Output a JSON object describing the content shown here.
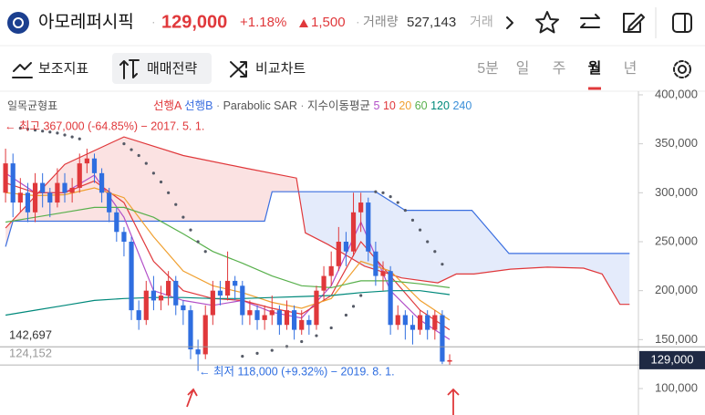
{
  "header": {
    "name": "아모레퍼시픽",
    "price": "129,000",
    "change_pct": "+1.18%",
    "change_abs": "1,500",
    "volume_label": "거래량",
    "volume": "527,143",
    "volume_cut": "거래"
  },
  "toolbar": {
    "indicators": "보조지표",
    "strategy": "매매전략",
    "compare": "비교차트",
    "periods": [
      "5분",
      "일",
      "주",
      "월",
      "년"
    ],
    "active_period": 3
  },
  "chart_data": {
    "type": "candlestick",
    "up_color": "#e0383b",
    "down_color": "#2f6ee0",
    "open": [
      300000,
      330000,
      290000,
      300000,
      280000,
      310000,
      300000,
      290000,
      310000,
      300000,
      305000,
      330000,
      335000,
      320000,
      300000,
      280000,
      260000,
      250000,
      180000,
      170000,
      200000,
      190000,
      195000,
      210000,
      185000,
      180000,
      140000,
      135000,
      175000,
      200000,
      195000,
      210000,
      205000,
      175000,
      180000,
      170000,
      175000,
      180000,
      165000,
      180000,
      160000,
      170000,
      165000,
      200000,
      215000,
      225000,
      250000,
      240000,
      280000,
      290000,
      240000,
      215000,
      220000,
      165000,
      175000,
      165000,
      160000,
      175000,
      160000,
      175000,
      127500
    ],
    "high": [
      345000,
      340000,
      315000,
      310000,
      320000,
      320000,
      305000,
      325000,
      320000,
      315000,
      340000,
      345000,
      340000,
      325000,
      305000,
      285000,
      265000,
      255000,
      190000,
      210000,
      215000,
      205000,
      220000,
      215000,
      190000,
      185000,
      150000,
      185000,
      210000,
      210000,
      240000,
      215000,
      210000,
      190000,
      185000,
      185000,
      195000,
      185000,
      190000,
      185000,
      180000,
      175000,
      205000,
      225000,
      240000,
      265000,
      260000,
      300000,
      300000,
      295000,
      250000,
      230000,
      225000,
      185000,
      180000,
      175000,
      180000,
      180000,
      180000,
      180000,
      135000
    ],
    "low": [
      290000,
      275000,
      280000,
      270000,
      270000,
      285000,
      275000,
      285000,
      290000,
      290000,
      300000,
      320000,
      310000,
      290000,
      270000,
      250000,
      235000,
      170000,
      160000,
      165000,
      180000,
      180000,
      185000,
      175000,
      165000,
      130000,
      118000,
      130000,
      165000,
      185000,
      190000,
      190000,
      165000,
      165000,
      160000,
      160000,
      165000,
      155000,
      160000,
      150000,
      155000,
      155000,
      160000,
      190000,
      205000,
      220000,
      225000,
      235000,
      260000,
      230000,
      205000,
      200000,
      155000,
      160000,
      150000,
      145000,
      155000,
      150000,
      150000,
      125000,
      124152
    ],
    "close": [
      330000,
      290000,
      300000,
      280000,
      310000,
      300000,
      290000,
      310000,
      300000,
      305000,
      330000,
      335000,
      320000,
      300000,
      280000,
      260000,
      250000,
      180000,
      170000,
      200000,
      190000,
      195000,
      210000,
      185000,
      180000,
      140000,
      135000,
      175000,
      200000,
      195000,
      210000,
      205000,
      175000,
      180000,
      170000,
      175000,
      180000,
      165000,
      180000,
      160000,
      170000,
      165000,
      200000,
      215000,
      225000,
      250000,
      240000,
      280000,
      290000,
      240000,
      215000,
      220000,
      165000,
      175000,
      165000,
      160000,
      175000,
      160000,
      175000,
      127500,
      129000
    ],
    "ylim": [
      73000,
      403700
    ],
    "yticks": [
      {
        "value": 100000,
        "label": "100,000"
      },
      {
        "value": 150000,
        "label": "150,000"
      },
      {
        "value": 200000,
        "label": "200,000"
      },
      {
        "value": 250000,
        "label": "250,000"
      },
      {
        "value": 300000,
        "label": "300,000"
      },
      {
        "value": 350000,
        "label": "350,000"
      },
      {
        "value": 400000,
        "label": "400,000"
      }
    ],
    "ichimoku": {
      "label": "일목균형표",
      "fill_a": "#fbe2e2",
      "fill_b": "#e4ebfb",
      "span_a": {
        "name": "선행A",
        "color": "#e0383b",
        "x": [
          0,
          8,
          16,
          24,
          32.5,
          39.3,
          40.5,
          43.6,
          48.5,
          53.5,
          58.4,
          60.9,
          63.3,
          68.2,
          73.2,
          78.1,
          80.6,
          83,
          84.3
        ],
        "values": [
          264000,
          329000,
          357000,
          338000,
          325000,
          315000,
          259000,
          247000,
          225000,
          213000,
          208000,
          217000,
          217000,
          222000,
          224000,
          223000,
          217000,
          186000,
          186000
        ]
      },
      "span_b": {
        "name": "선행B",
        "color": "#3b6fe0",
        "x": [
          0,
          1,
          35,
          36,
          50,
          54,
          63,
          68,
          84.3
        ],
        "values": [
          245000,
          271000,
          271000,
          301000,
          301000,
          282000,
          282000,
          238000,
          238000
        ]
      }
    },
    "sar": {
      "name": "Parabolic SAR",
      "color": "#555a66",
      "x": [
        2,
        3,
        4,
        5,
        6,
        7,
        8,
        9,
        10,
        16,
        17,
        18,
        19,
        20,
        21,
        22,
        23,
        24,
        25,
        26,
        27,
        32,
        34,
        36,
        38,
        40,
        42,
        44,
        46,
        47,
        48,
        50,
        51,
        52,
        53,
        54,
        55,
        56,
        57,
        58,
        59
      ],
      "values": [
        366000,
        365000,
        364000,
        363000,
        362000,
        361000,
        359000,
        357000,
        355000,
        350000,
        344000,
        338000,
        330000,
        320000,
        311000,
        300000,
        288000,
        275000,
        262000,
        250000,
        240000,
        133000,
        136000,
        139000,
        143000,
        148000,
        154000,
        162000,
        175000,
        184000,
        195000,
        301000,
        300000,
        296000,
        290000,
        282000,
        272000,
        262000,
        250000,
        240000,
        227000
      ]
    },
    "ema": {
      "label": "지수이동평균",
      "series": [
        {
          "name": "5",
          "color": "#b24fc8",
          "x": [
            0,
            4,
            8,
            12,
            16,
            20,
            24,
            28,
            32,
            36,
            40,
            44,
            48,
            52,
            56,
            60
          ],
          "values": [
            320000,
            300000,
            300000,
            318000,
            275000,
            200000,
            190000,
            185000,
            190000,
            178000,
            172000,
            205000,
            270000,
            200000,
            170000,
            150000
          ]
        },
        {
          "name": "10",
          "color": "#e0383b",
          "x": [
            0,
            4,
            8,
            12,
            16,
            20,
            24,
            28,
            32,
            36,
            40,
            44,
            48,
            52,
            56,
            60
          ],
          "values": [
            310000,
            300000,
            300000,
            312000,
            290000,
            230000,
            200000,
            192000,
            190000,
            182000,
            176000,
            195000,
            250000,
            215000,
            180000,
            160000
          ]
        },
        {
          "name": "20",
          "color": "#f0a030",
          "x": [
            0,
            4,
            8,
            12,
            16,
            20,
            24,
            28,
            32,
            36,
            40,
            44,
            48,
            52,
            56,
            60
          ],
          "values": [
            300000,
            297000,
            298000,
            305000,
            295000,
            255000,
            220000,
            205000,
            198000,
            188000,
            182000,
            192000,
            230000,
            220000,
            190000,
            170000
          ]
        },
        {
          "name": "60",
          "color": "#58b04c",
          "x": [
            0,
            4,
            8,
            12,
            16,
            20,
            24,
            28,
            32,
            36,
            40,
            44,
            48,
            52,
            56,
            60
          ],
          "values": [
            270000,
            275000,
            280000,
            285000,
            285000,
            275000,
            258000,
            240000,
            228000,
            215000,
            205000,
            203000,
            210000,
            210000,
            207000,
            203000
          ]
        },
        {
          "name": "120",
          "color": "#00897b",
          "x": [
            0,
            4,
            8,
            12,
            16,
            20,
            24,
            28,
            32,
            36,
            40,
            44,
            48,
            52,
            56,
            60
          ],
          "values": [
            175000,
            180000,
            185000,
            190000,
            192000,
            193000,
            193000,
            192000,
            192000,
            193000,
            194000,
            195000,
            198000,
            200000,
            200000,
            196000
          ]
        },
        {
          "name": "240",
          "color": "#3b8fd8",
          "x": [],
          "values": []
        }
      ]
    },
    "high_note": "← 최고 367,000 (-64.85%) − 2017. 5. 1.",
    "low_note": "← 최저 118,000 (+9.32%) − 2019. 8. 1.",
    "levels": [
      {
        "value": 142697,
        "label": "142,697",
        "color": "#333333"
      },
      {
        "value": 124152,
        "label": "124,152",
        "color": "#999999"
      }
    ],
    "last_price": {
      "value": 129000,
      "label": "129,000",
      "color": "#1f2a44"
    }
  }
}
